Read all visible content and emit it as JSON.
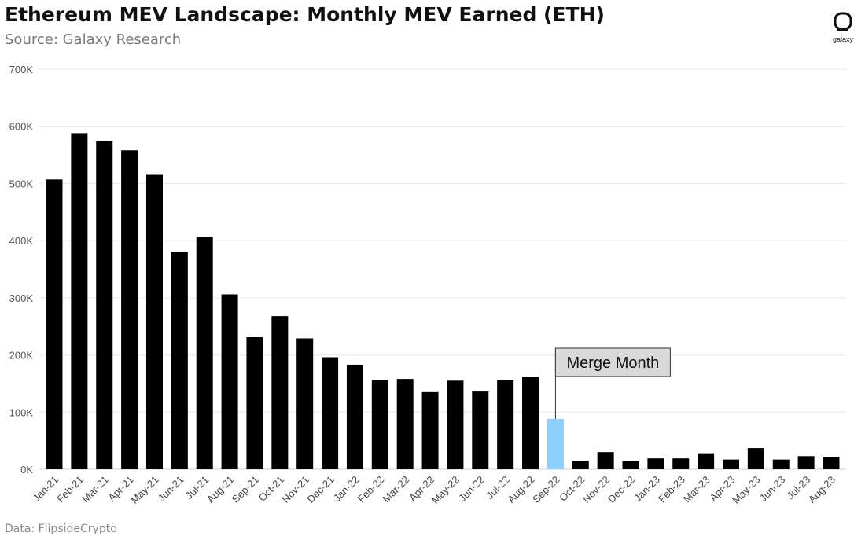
{
  "header": {
    "title": "Ethereum MEV Landscape: Monthly MEV Earned (ETH)",
    "subtitle": "Source: Galaxy Research"
  },
  "footer": {
    "text": "Data: FlipsideCrypto"
  },
  "logo": {
    "text": "galaxy",
    "icon": "galaxy-logo-icon"
  },
  "colors": {
    "bar": "#000000",
    "highlight": "#8ecfff",
    "grid": "#e6e6e6",
    "annotation_fill": "#d9d9d9"
  },
  "chart_data": {
    "type": "bar",
    "title": "Ethereum MEV Landscape: Monthly MEV Earned (ETH)",
    "xlabel": "",
    "ylabel": "",
    "ylim": [
      0,
      700000
    ],
    "yticks": [
      {
        "value": 0,
        "label": "0K"
      },
      {
        "value": 100000,
        "label": "100K"
      },
      {
        "value": 200000,
        "label": "200K"
      },
      {
        "value": 300000,
        "label": "300K"
      },
      {
        "value": 400000,
        "label": "400K"
      },
      {
        "value": 500000,
        "label": "500K"
      },
      {
        "value": 600000,
        "label": "600K"
      },
      {
        "value": 700000,
        "label": "700K"
      }
    ],
    "grid": true,
    "legend": "none",
    "categories": [
      "Jan-21",
      "Feb-21",
      "Mar-21",
      "Apr-21",
      "May-21",
      "Jun-21",
      "Jul-21",
      "Aug-21",
      "Sep-21",
      "Oct-21",
      "Nov-21",
      "Dec-21",
      "Jan-22",
      "Feb-22",
      "Mar-22",
      "Apr-22",
      "May-22",
      "Jun-22",
      "Jul-22",
      "Aug-22",
      "Sep-22",
      "Oct-22",
      "Nov-22",
      "Dec-22",
      "Jan-23",
      "Feb-23",
      "Mar-23",
      "Apr-23",
      "May-23",
      "Jun-23",
      "Jul-23",
      "Aug-23"
    ],
    "values": [
      507000,
      588000,
      574000,
      558000,
      515000,
      381000,
      407000,
      306000,
      231000,
      268000,
      229000,
      196000,
      183000,
      156000,
      158000,
      135000,
      155000,
      136000,
      156000,
      162000,
      88000,
      15000,
      30000,
      14000,
      19000,
      19000,
      28000,
      17000,
      37000,
      17000,
      23000,
      22000
    ],
    "highlight_category": "Sep-22",
    "annotations": [
      {
        "text": "Merge Month",
        "category": "Sep-22"
      }
    ]
  }
}
